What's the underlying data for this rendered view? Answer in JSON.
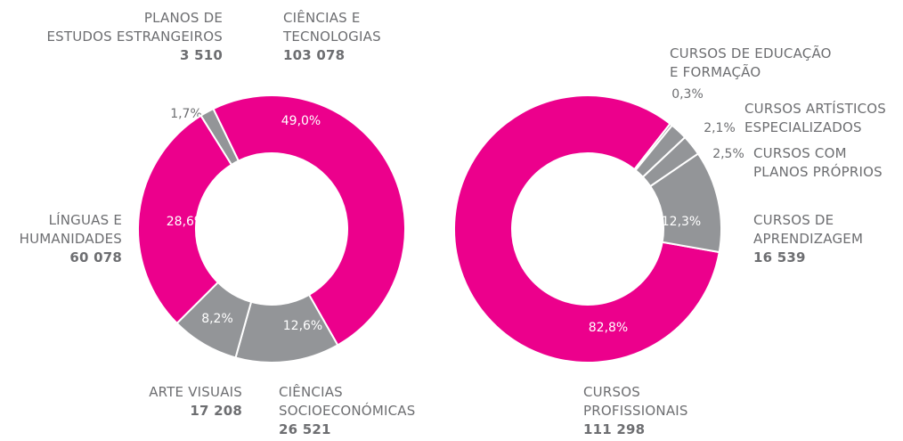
{
  "chart_data": [
    {
      "type": "pie",
      "categories": [
        "PLANOS DE\nESTUDOS ESTRANGEIROS",
        "CIÊNCIAS E\nTECNOLOGIAS",
        "CIÊNCIAS\nSOCIOECONÓMICAS",
        "ARTE VISUAIS",
        "LÍNGUAS E\nHUMANIDADES"
      ],
      "values": [
        1.7,
        49.0,
        12.6,
        8.2,
        28.6
      ],
      "value_labels": [
        "1,7%",
        "49,0%",
        "12,6%",
        "8,2%",
        "28,6%"
      ],
      "counts": [
        3510,
        103078,
        26521,
        17208,
        60078
      ],
      "count_labels": [
        "3 510",
        "103 078",
        "26 521",
        "17 208",
        "60 078"
      ],
      "colors": [
        "#939598",
        "#ec008c",
        "#939598",
        "#939598",
        "#ec008c"
      ]
    },
    {
      "type": "pie",
      "categories": [
        "CURSOS\nPROFISSIONAIS",
        "CURSOS DE EDUCAÇÃO\nE FORMAÇÃO",
        "CURSOS ARTÍSTICOS\nESPECIALIZADOS",
        "CURSOS COM\nPLANOS PRÓPRIOS",
        "CURSOS DE\nAPRENDIZAGEM"
      ],
      "values": [
        82.8,
        0.3,
        2.1,
        2.5,
        12.3
      ],
      "value_labels": [
        "82,8%",
        "0,3%",
        "2,1%",
        "2,5%",
        "12,3%"
      ],
      "counts": [
        111298,
        null,
        null,
        null,
        16539
      ],
      "count_labels": [
        "111 298",
        null,
        null,
        null,
        "16 539"
      ],
      "colors": [
        "#ec008c",
        "#939598",
        "#939598",
        "#939598",
        "#939598"
      ]
    }
  ]
}
